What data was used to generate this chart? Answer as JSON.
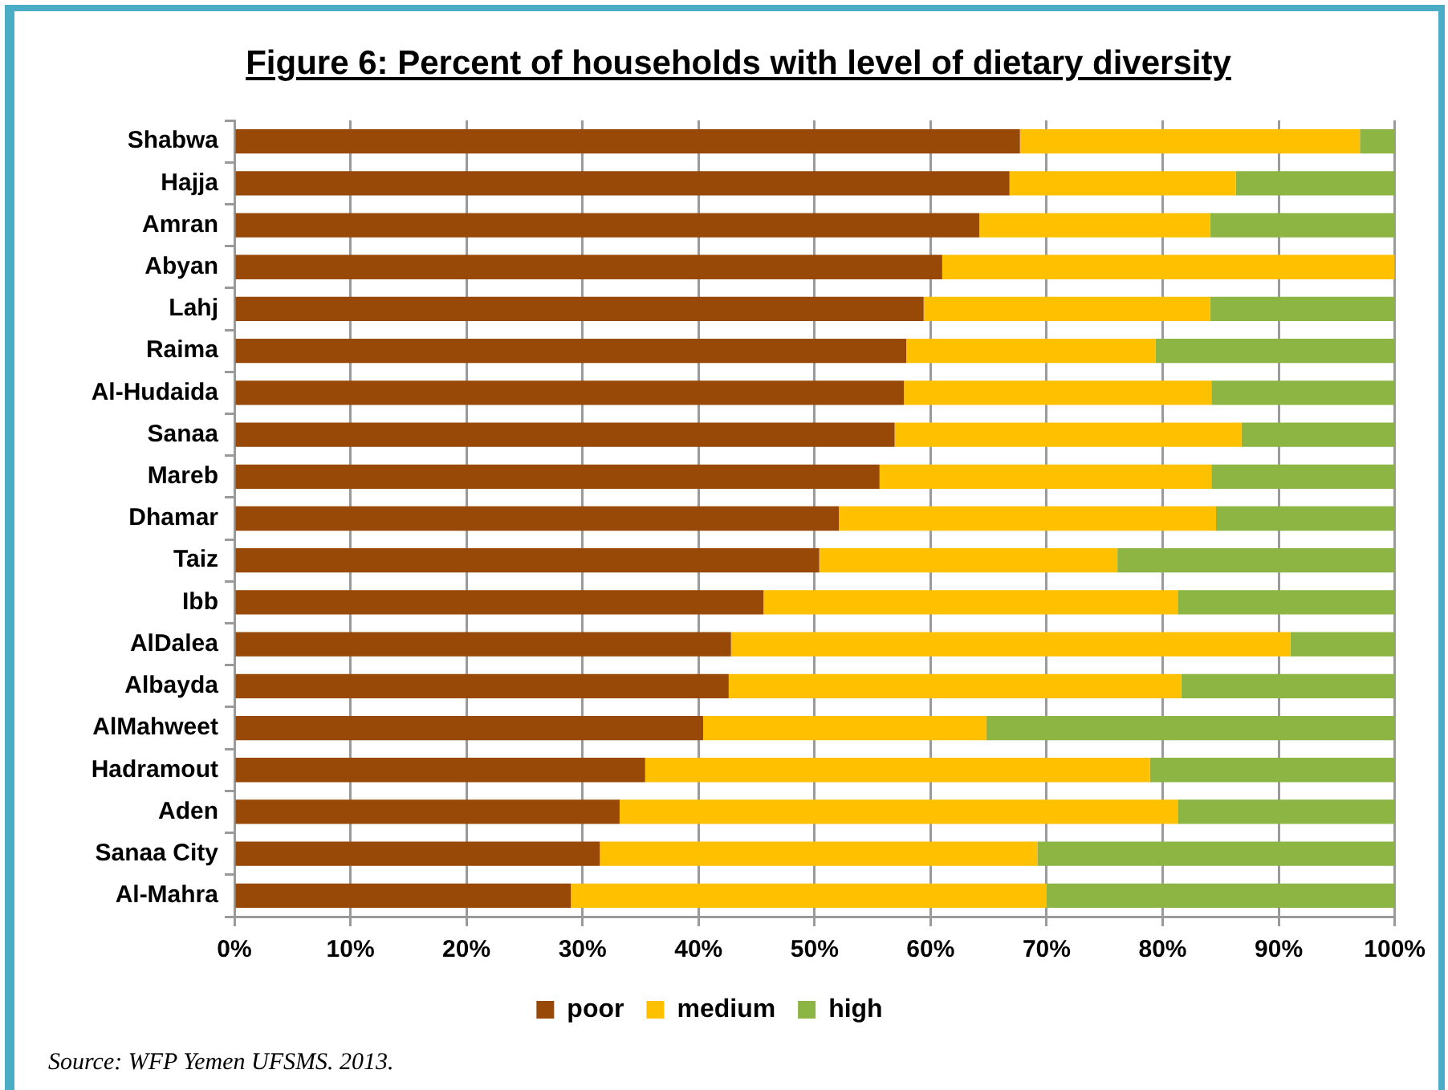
{
  "chart_data": {
    "type": "bar",
    "orientation": "horizontal",
    "stacked": true,
    "title": "Figure 6: Percent of households with level of dietary diversity",
    "categories": [
      "Shabwa",
      "Hajja",
      "Amran",
      "Abyan",
      "Lahj",
      "Raima",
      "Al-Hudaida",
      "Sanaa",
      "Mareb",
      "Dhamar",
      "Taiz",
      "Ibb",
      "AlDalea",
      "Albayda",
      "AlMahweet",
      "Hadramout",
      "Aden",
      "Sanaa City",
      "Al-Mahra"
    ],
    "series": [
      {
        "name": "poor",
        "color": "#984807",
        "values": [
          67.7,
          66.8,
          64.2,
          61.0,
          59.4,
          57.9,
          57.7,
          56.9,
          55.6,
          52.1,
          50.4,
          45.6,
          42.8,
          42.6,
          40.4,
          35.4,
          33.2,
          31.5,
          29.0
        ]
      },
      {
        "name": "medium",
        "color": "#ffc000",
        "values": [
          29.3,
          19.5,
          19.9,
          39.0,
          24.7,
          21.5,
          26.5,
          29.9,
          28.6,
          32.5,
          25.7,
          35.7,
          48.2,
          39.0,
          24.4,
          43.5,
          48.1,
          37.7,
          41.0
        ]
      },
      {
        "name": "high",
        "color": "#8db544",
        "values": [
          3.0,
          13.7,
          15.9,
          0,
          15.9,
          20.6,
          15.8,
          13.2,
          15.8,
          15.4,
          23.9,
          18.7,
          9.0,
          18.4,
          35.2,
          21.1,
          18.7,
          30.8,
          30.0
        ]
      }
    ],
    "xlim": [
      0,
      100
    ],
    "xticks": [
      {
        "value": 0,
        "label": "0%"
      },
      {
        "value": 10,
        "label": "10%"
      },
      {
        "value": 20,
        "label": "20%"
      },
      {
        "value": 30,
        "label": "30%"
      },
      {
        "value": 40,
        "label": "40%"
      },
      {
        "value": 50,
        "label": "50%"
      },
      {
        "value": 60,
        "label": "60%"
      },
      {
        "value": 70,
        "label": "70%"
      },
      {
        "value": 80,
        "label": "80%"
      },
      {
        "value": 90,
        "label": "90%"
      },
      {
        "value": 100,
        "label": "100%"
      }
    ],
    "grid": "x",
    "legend": "bottom",
    "annotations": [
      "Source: WFP Yemen UFSMS. 2013."
    ]
  }
}
